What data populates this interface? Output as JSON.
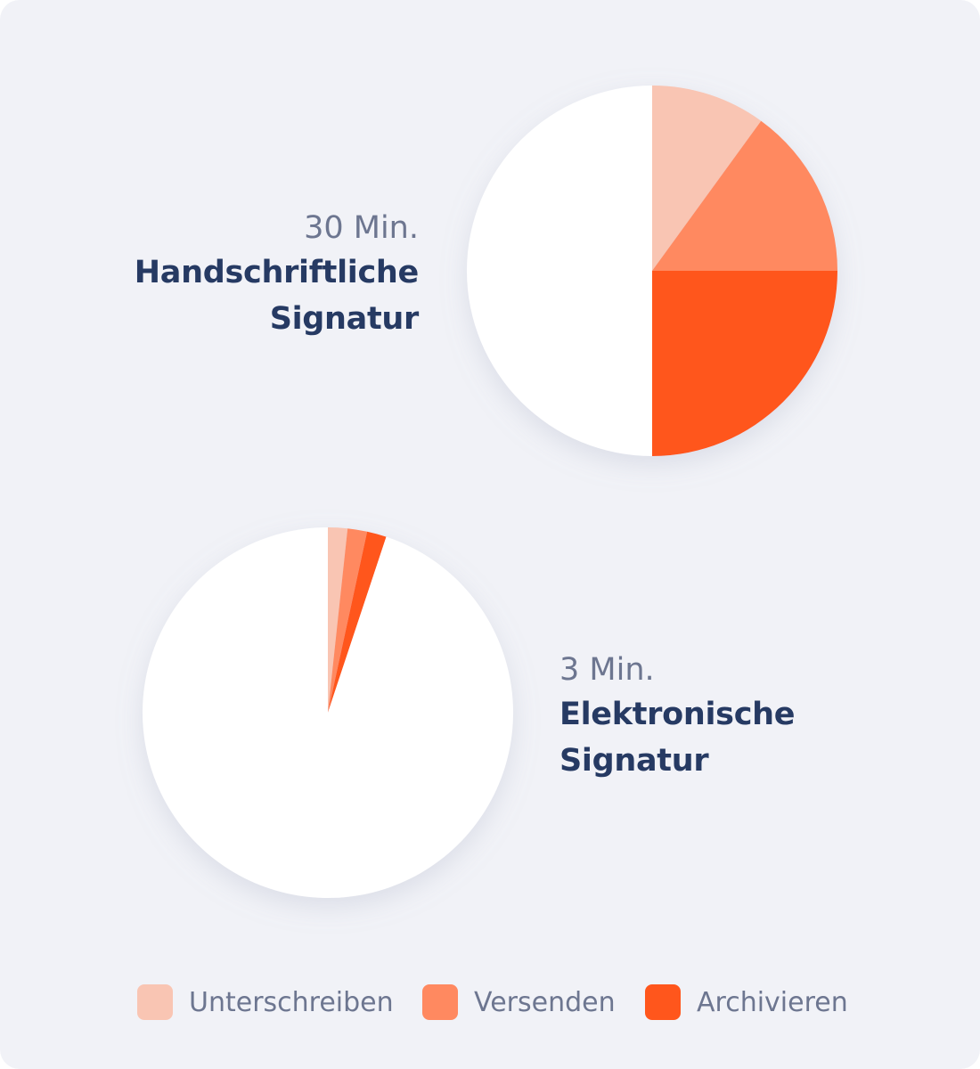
{
  "chart_data": [
    {
      "type": "pie",
      "time_label": "30 Min.",
      "title": "Handschriftliche Signatur",
      "categories": [
        "Unterschreiben",
        "Versenden",
        "Archivieren",
        ""
      ],
      "values": [
        10,
        15,
        25,
        50
      ],
      "colors": [
        "#f9c5b3",
        "#ff8960",
        "#ff561c",
        "#ffffff"
      ]
    },
    {
      "type": "pie",
      "time_label": "3 Min.",
      "title": "Elektronische Signatur",
      "categories": [
        "Unterschreiben",
        "Versenden",
        "Archivieren",
        ""
      ],
      "values": [
        1.7,
        1.7,
        1.7,
        94.9
      ],
      "colors": [
        "#f9c5b3",
        "#ff8960",
        "#ff561c",
        "#ffffff"
      ]
    }
  ],
  "legend": [
    {
      "label": "Unterschreiben",
      "color": "#f9c5b3"
    },
    {
      "label": "Versenden",
      "color": "#ff8960"
    },
    {
      "label": "Archivieren",
      "color": "#ff561c"
    }
  ]
}
